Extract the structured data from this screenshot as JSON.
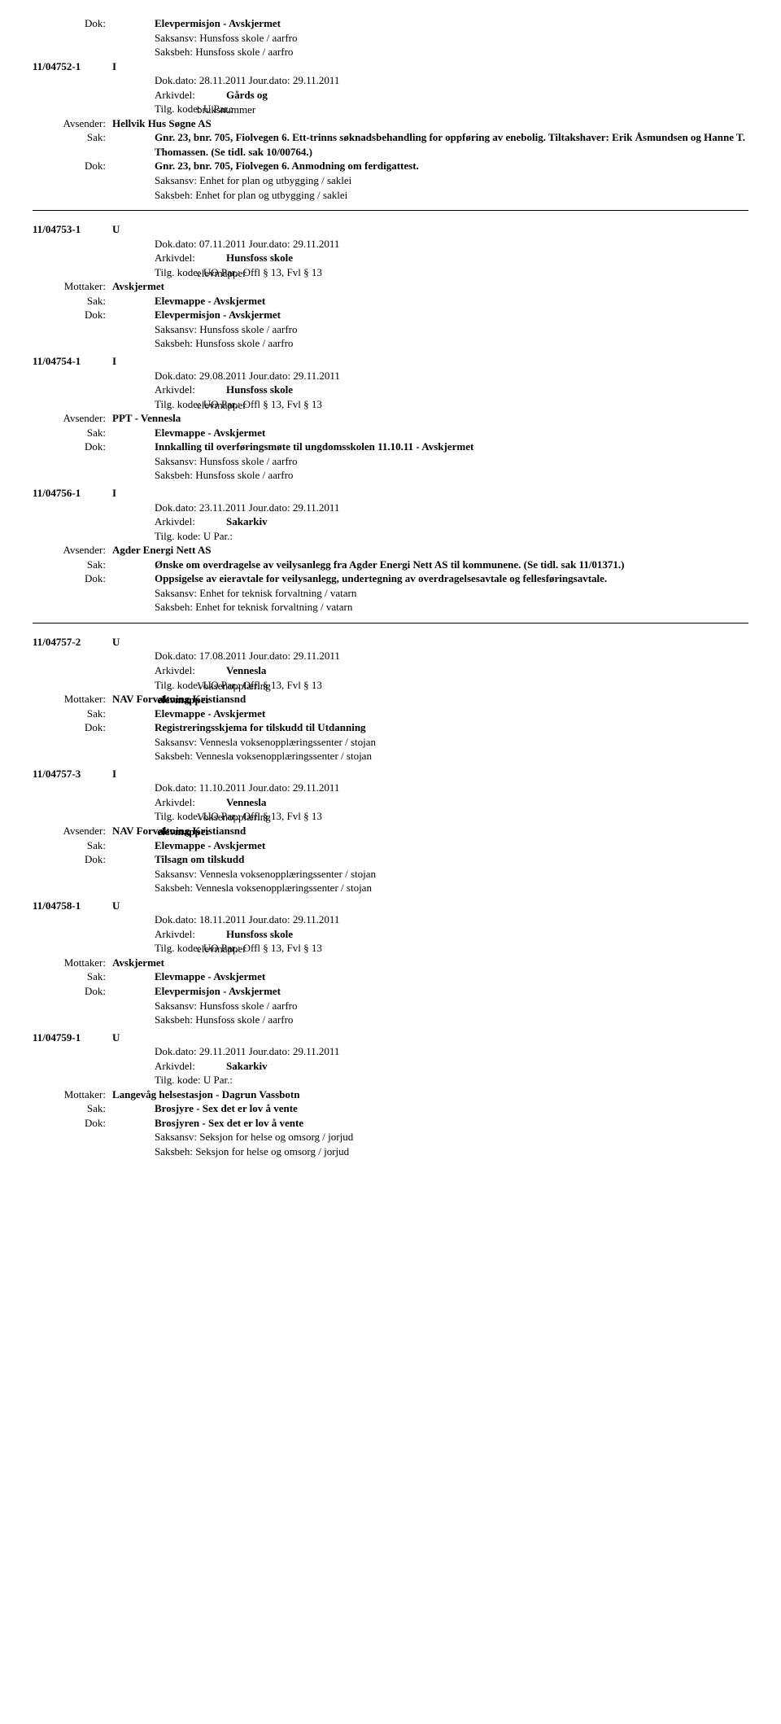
{
  "entries": [
    {
      "caseNo": "11/04752-1",
      "docType": "I",
      "preRows": [
        {
          "label": "Dok:",
          "content": "Elevpermisjon - Avskjermet",
          "bold": true
        },
        {
          "label": "",
          "content": "Saksansv: Hunsfoss skole / aarfro"
        },
        {
          "label": "",
          "content": "Saksbeh: Hunsfoss skole / aarfro"
        }
      ],
      "dokDato": "Dok.dato: 28.11.2011  Jour.dato:   29.11.2011",
      "arkivdel": "Gårds og",
      "tilg": {
        "layer1": "Tilg. kode:  U        Par.:",
        "layer2": "                bruksnummer"
      },
      "party": {
        "label": "Avsender:",
        "value": "Hellvik Hus Søgne AS"
      },
      "sak": "Gnr. 23, bnr. 705, Fiolvegen 6. Ett-trinns søknadsbehandling for oppføring av enebolig. Tiltakshaver: Erik Åsmundsen og Hanne T. Thomassen. (Se tidl. sak 10/00764.)",
      "dok": "Gnr. 23, bnr. 705, Fiolvegen 6. Anmodning om ferdigattest.",
      "saksansv": "Saksansv: Enhet for plan og utbygging / saklei",
      "saksbeh": "Saksbeh:  Enhet for plan og utbygging / saklei",
      "hrAfter": true
    },
    {
      "caseNo": "11/04753-1",
      "docType": "U",
      "dokDato": "Dok.dato: 07.11.2011  Jour.dato:   29.11.2011",
      "arkivdel": "Hunsfoss skole",
      "tilg": {
        "layer1": "Tilg. kode:  UO      Par.:  Offl § 13, Fvl § 13",
        "layer2": "                elevmapper"
      },
      "party": {
        "label": "Mottaker:",
        "value": "Avskjermet"
      },
      "sak": "Elevmappe - Avskjermet",
      "dok": "Elevpermisjon - Avskjermet",
      "saksansv": "Saksansv: Hunsfoss skole / aarfro",
      "saksbeh": "Saksbeh: Hunsfoss skole / aarfro"
    },
    {
      "caseNo": "11/04754-1",
      "docType": "I",
      "dokDato": "Dok.dato: 29.08.2011  Jour.dato:   29.11.2011",
      "arkivdel": "Hunsfoss skole",
      "tilg": {
        "layer1": "Tilg. kode:  UO      Par.:  Offl § 13, Fvl § 13",
        "layer2": "                elevmapper"
      },
      "party": {
        "label": "Avsender:",
        "value": "PPT - Vennesla"
      },
      "sak": "Elevmappe - Avskjermet",
      "dok": "Innkalling til overføringsmøte til ungdomsskolen 11.10.11 - Avskjermet",
      "saksansv": "Saksansv: Hunsfoss skole / aarfro",
      "saksbeh": "Saksbeh: Hunsfoss skole / aarfro"
    },
    {
      "caseNo": "11/04756-1",
      "docType": "I",
      "dokDato": "Dok.dato: 23.11.2011  Jour.dato:   29.11.2011",
      "arkivdel": "Sakarkiv",
      "tilgPlain": "Tilg. kode:  U        Par.:",
      "party": {
        "label": "Avsender:",
        "value": "Agder Energi Nett AS"
      },
      "sak": "Ønske om overdragelse av veilysanlegg fra Agder Energi Nett AS til kommunene. (Se tidl. sak 11/01371.)",
      "dok": "Oppsigelse av eieravtale for veilysanlegg, undertegning av overdragelsesavtale og fellesføringsavtale.",
      "saksansv": "Saksansv: Enhet for teknisk forvaltning / vatarn",
      "saksbeh": "Saksbeh:  Enhet for teknisk forvaltning / vatarn",
      "hrAfter": true
    },
    {
      "caseNo": "11/04757-2",
      "docType": "U",
      "dokDato": "Dok.dato: 17.08.2011  Jour.dato:   29.11.2011",
      "arkivdel": "Vennesla",
      "tilg": {
        "layer1": "Tilg. kode:  UO      Par.:  Offl § 13, Fvl § 13",
        "layer2": "                Voksenopplæring"
      },
      "partyOverlap": {
        "label": "Mottaker:",
        "layer1": "NAV Forvaltning Kristiansnd",
        "layer2": "                 elevmapper"
      },
      "sak": "Elevmappe - Avskjermet",
      "dok": "Registreringsskjema for tilskudd til Utdanning",
      "saksansv": "Saksansv: Vennesla voksenopplæringssenter / stojan",
      "saksbeh": "Saksbeh:  Vennesla voksenopplæringssenter / stojan"
    },
    {
      "caseNo": "11/04757-3",
      "docType": "I",
      "dokDato": "Dok.dato: 11.10.2011  Jour.dato:   29.11.2011",
      "arkivdel": "Vennesla",
      "tilg": {
        "layer1": "Tilg. kode:  UO      Par.:  Offl § 13, Fvl § 13",
        "layer2": "                Voksenopplæring"
      },
      "partyOverlap": {
        "label": "Avsender:",
        "layer1": "NAV Forvaltning Kristiansnd",
        "layer2": "                 elevmapper"
      },
      "sak": "Elevmappe - Avskjermet",
      "dok": "Tilsagn om tilskudd",
      "saksansv": "Saksansv: Vennesla voksenopplæringssenter / stojan",
      "saksbeh": "Saksbeh:  Vennesla voksenopplæringssenter / stojan"
    },
    {
      "caseNo": "11/04758-1",
      "docType": "U",
      "dokDato": "Dok.dato: 18.11.2011  Jour.dato:   29.11.2011",
      "arkivdel": "Hunsfoss skole",
      "tilg": {
        "layer1": "Tilg. kode:  UO      Par.:  Offl § 13, Fvl § 13",
        "layer2": "                elevmapper"
      },
      "party": {
        "label": "Mottaker:",
        "value": "Avskjermet"
      },
      "sak": "Elevmappe - Avskjermet",
      "dok": "Elevpermisjon - Avskjermet",
      "saksansv": "Saksansv: Hunsfoss skole / aarfro",
      "saksbeh": "Saksbeh: Hunsfoss skole / aarfro"
    },
    {
      "caseNo": "11/04759-1",
      "docType": "U",
      "dokDato": "Dok.dato: 29.11.2011  Jour.dato:   29.11.2011",
      "arkivdel": "Sakarkiv",
      "tilgPlain": "Tilg. kode:  U        Par.:",
      "party": {
        "label": "Mottaker:",
        "value": "Langevåg helsestasjon - Dagrun Vassbotn"
      },
      "sak": "Brosjyre - Sex det er lov å vente",
      "dok": "Brosjyren - Sex det er lov å vente",
      "saksansv": "Saksansv: Seksjon for helse og omsorg / jorjud",
      "saksbeh": "Saksbeh:  Seksjon for helse og omsorg / jorjud"
    }
  ],
  "labels": {
    "dok": "Dok:",
    "sak": "Sak:",
    "arkivdel": "Arkivdel:"
  }
}
